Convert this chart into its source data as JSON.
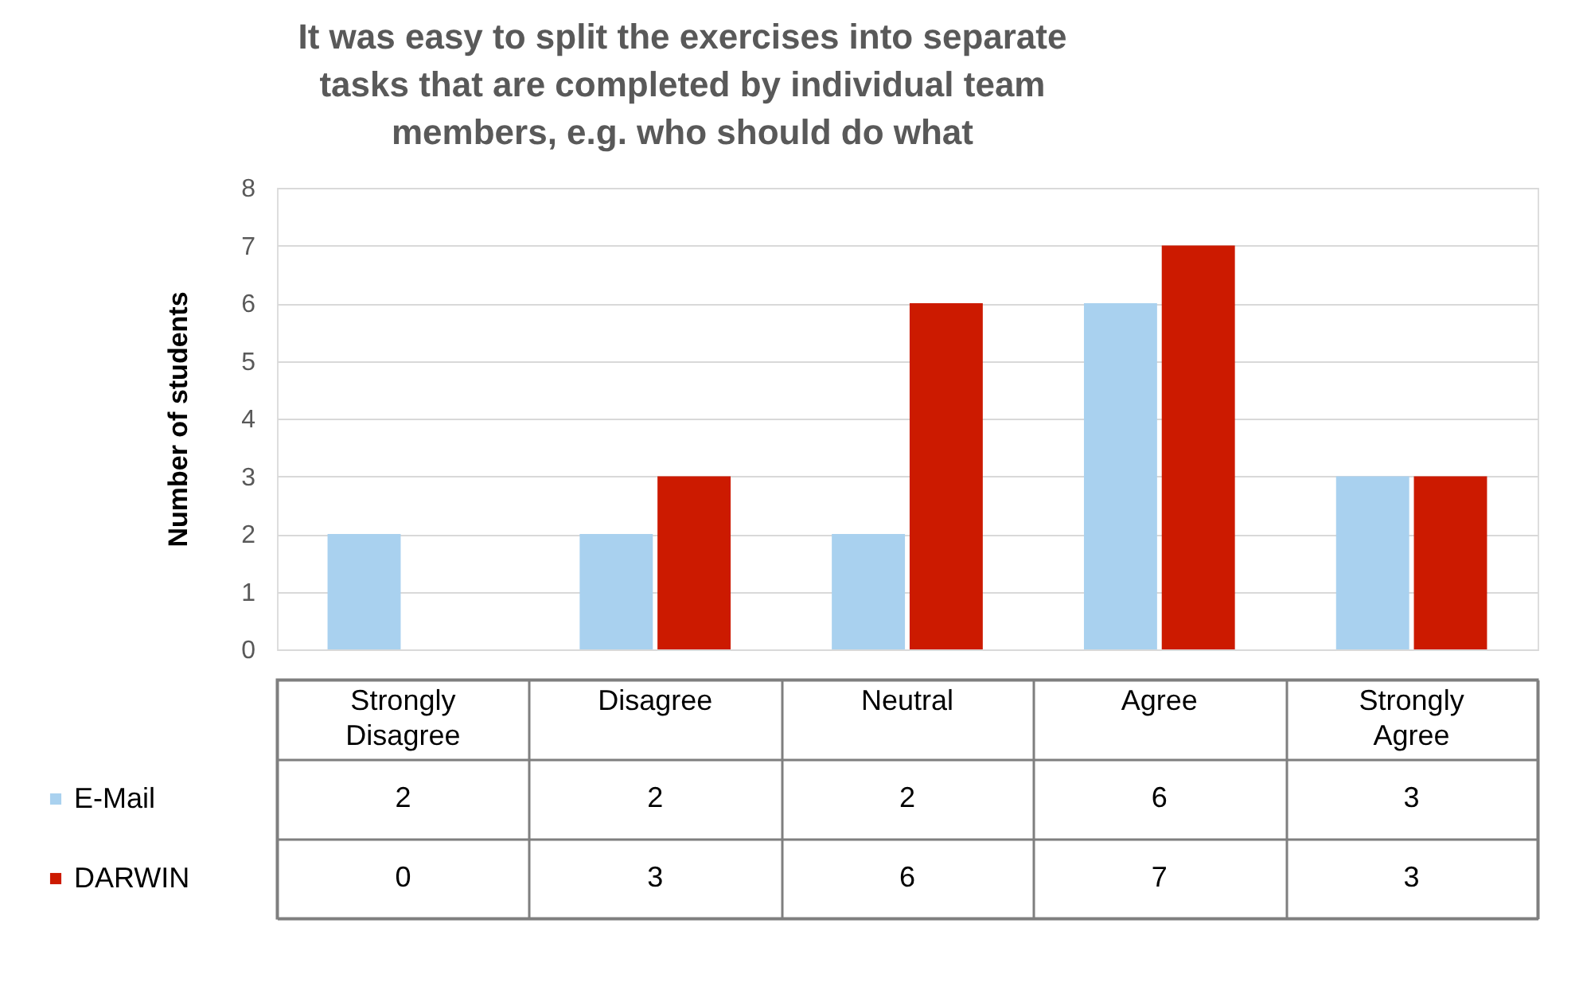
{
  "chart_data": {
    "type": "bar",
    "title": "It was easy to split the exercises into separate tasks that are completed by individual team members, e.g. who should do what",
    "ylabel": "Number of students",
    "categories": [
      "Strongly Disagree",
      "Disagree",
      "Neutral",
      "Agree",
      "Strongly Agree"
    ],
    "series": [
      {
        "name": "E-Mail",
        "color": "#a9d1ef",
        "values": [
          2,
          2,
          2,
          6,
          3
        ]
      },
      {
        "name": "DARWIN",
        "color": "#cc1a00",
        "values": [
          0,
          3,
          6,
          7,
          3
        ]
      }
    ],
    "ylim": [
      0,
      8
    ],
    "yticks": [
      0,
      1,
      2,
      3,
      4,
      5,
      6,
      7,
      8
    ],
    "grid": "y",
    "data_labels": true,
    "legend": "bottom left"
  }
}
